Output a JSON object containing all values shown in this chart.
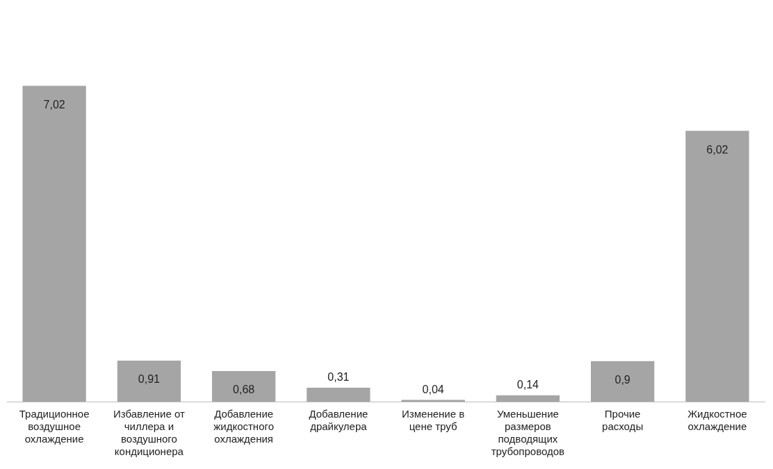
{
  "chart_data": {
    "type": "bar",
    "categories": [
      "Традиционное воздушное охлаждение",
      "Избавление от чиллера и воздушного кондиционера",
      "Добавление жидкостного охлаждения",
      "Добавление драйкулера",
      "Изменение в цене труб",
      "Уменьшение размеров подводящих трубопроводов",
      "Прочие расходы",
      "Жидкостное охлаждение"
    ],
    "values": [
      7.02,
      0.91,
      0.68,
      0.31,
      0.04,
      0.14,
      0.9,
      6.02
    ],
    "value_labels": [
      "7,02",
      "0,91",
      "0,68",
      "0,31",
      "0,04",
      "0,14",
      "0,9",
      "6,02"
    ],
    "color": "#a5a5a5",
    "tick_labels": "x",
    "grid": false,
    "legend": false
  }
}
